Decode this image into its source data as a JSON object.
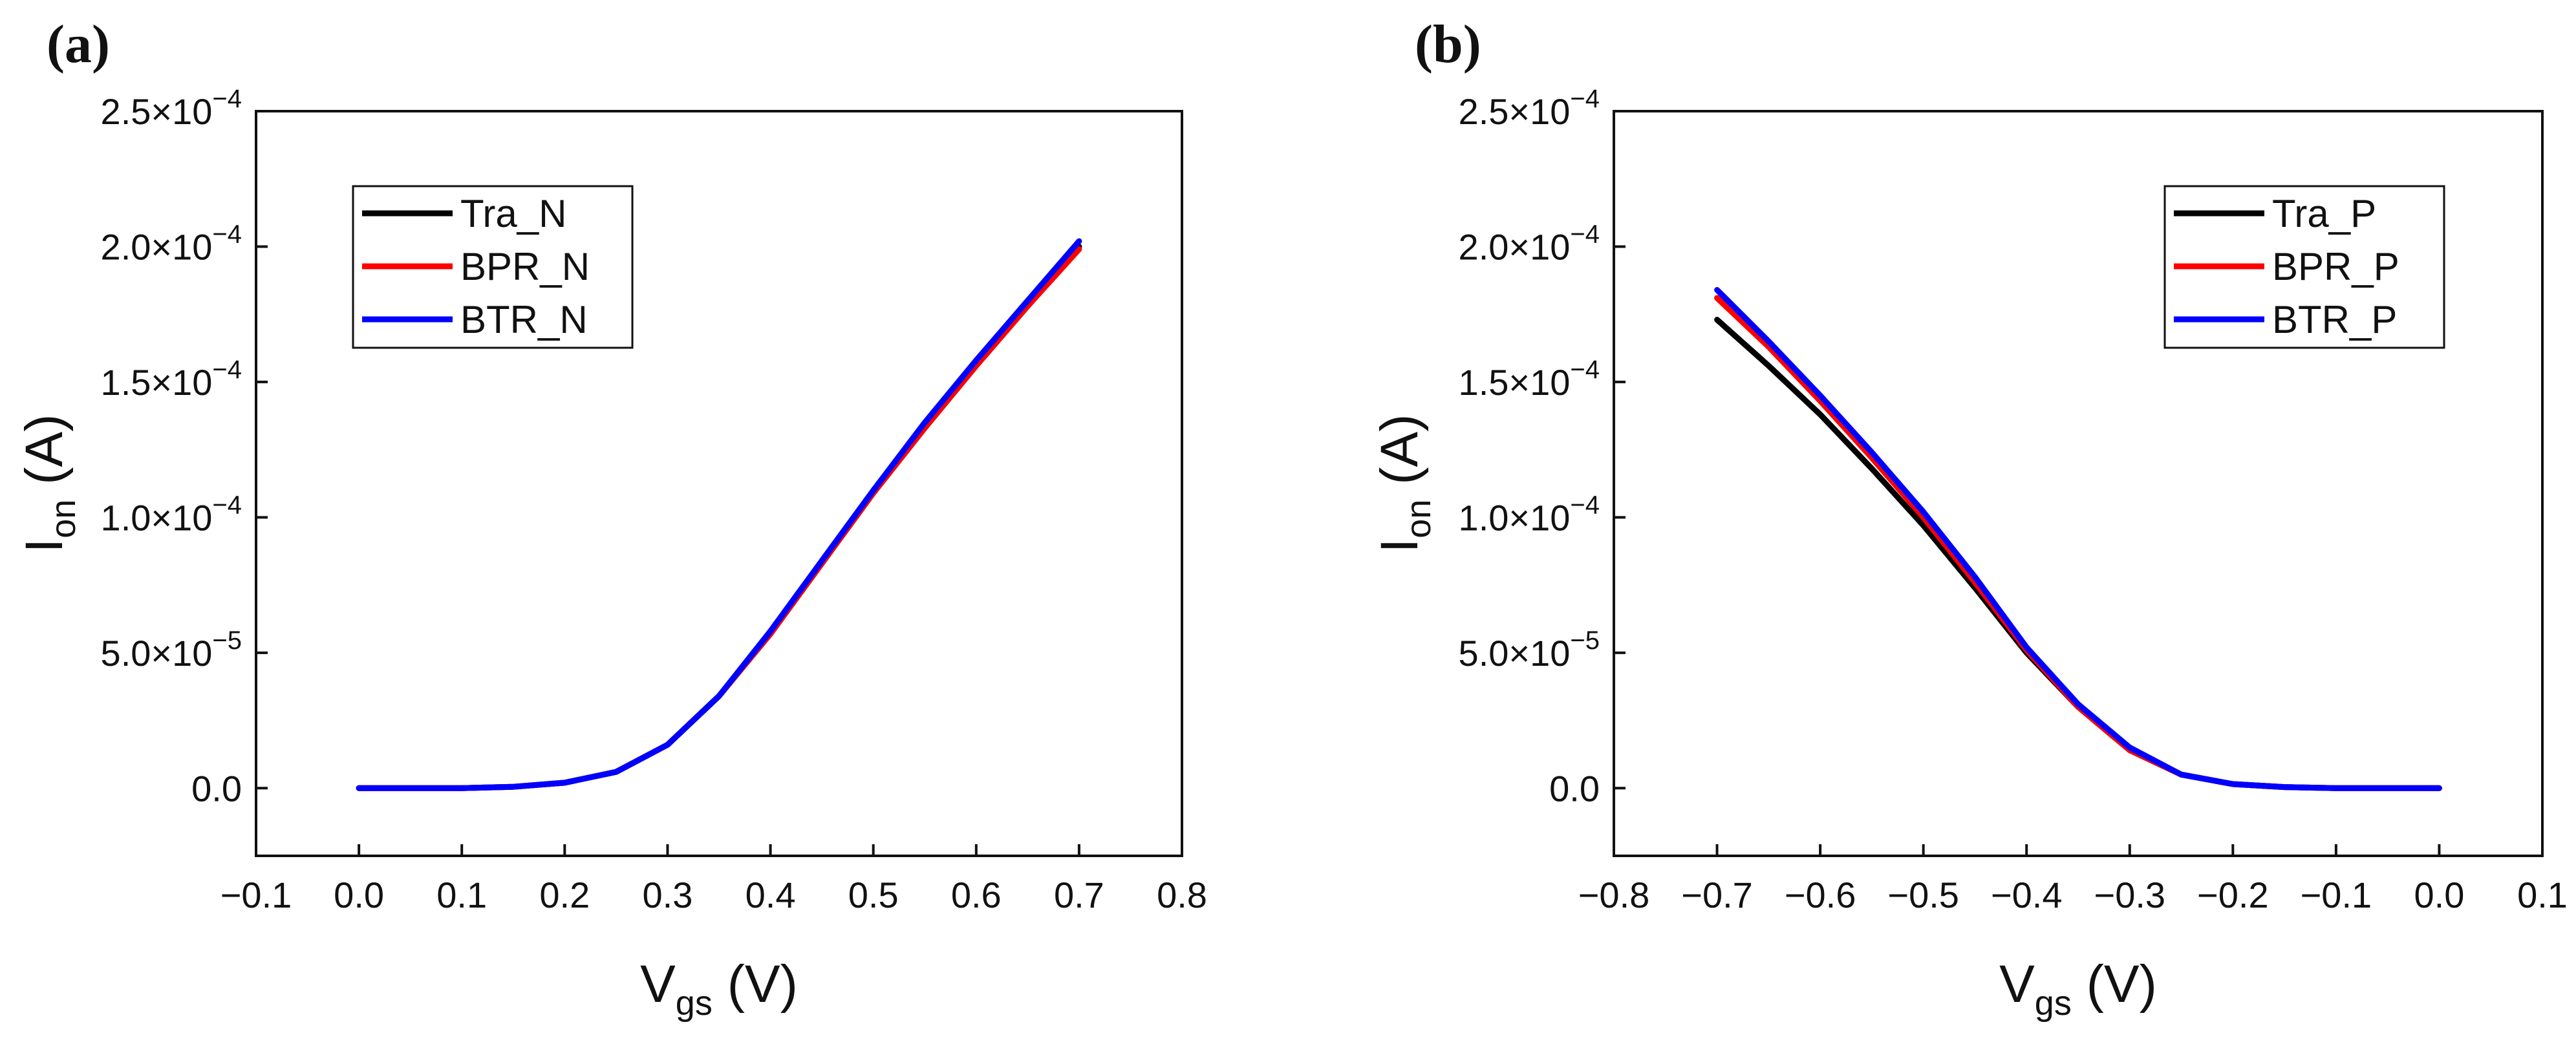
{
  "chart_data": [
    {
      "type": "line",
      "panel_label": "(a)",
      "xlabel": "V",
      "xlabel_sub": "gs",
      "xlabel_unit": " (V)",
      "ylabel": "I",
      "ylabel_sub": "on",
      "ylabel_unit": " (A)",
      "xlim": [
        -0.1,
        0.8
      ],
      "ylim": [
        -2.5e-05,
        0.00025
      ],
      "xticks": [
        -0.1,
        0.0,
        0.1,
        0.2,
        0.3,
        0.4,
        0.5,
        0.6,
        0.7,
        0.8
      ],
      "xtick_labels": [
        "−0.1",
        "0.0",
        "0.1",
        "0.2",
        "0.3",
        "0.4",
        "0.5",
        "0.6",
        "0.7",
        "0.8"
      ],
      "yticks": [
        0,
        5e-05,
        0.0001,
        0.00015,
        0.0002,
        0.00025
      ],
      "ytick_labels": [
        {
          "mant": "0.0",
          "exp": ""
        },
        {
          "mant": "5.0×10",
          "exp": "−5"
        },
        {
          "mant": "1.0×10",
          "exp": "−4"
        },
        {
          "mant": "1.5×10",
          "exp": "−4"
        },
        {
          "mant": "2.0×10",
          "exp": "−4"
        },
        {
          "mant": "2.5×10",
          "exp": "−4"
        }
      ],
      "legend_position": "top-left",
      "series": [
        {
          "name": "Tra_N",
          "color": "#000000",
          "x": [
            0.0,
            0.05,
            0.1,
            0.15,
            0.2,
            0.25,
            0.3,
            0.35,
            0.4,
            0.45,
            0.5,
            0.55,
            0.6,
            0.65,
            0.7
          ],
          "y": [
            0,
            0,
            0,
            5e-07,
            2e-06,
            6e-06,
            1.6e-05,
            3.4e-05,
            5.7e-05,
            8.3e-05,
            0.000109,
            0.000133,
            0.000156,
            0.000178,
            0.0002
          ]
        },
        {
          "name": "BPR_N",
          "color": "#ff0000",
          "x": [
            0.0,
            0.05,
            0.1,
            0.15,
            0.2,
            0.25,
            0.3,
            0.35,
            0.4,
            0.45,
            0.5,
            0.55,
            0.6,
            0.65,
            0.7
          ],
          "y": [
            0,
            0,
            0,
            5e-07,
            2e-06,
            6e-06,
            1.6e-05,
            3.4e-05,
            5.7e-05,
            8.3e-05,
            0.000109,
            0.000133,
            0.000156,
            0.000178,
            0.000199
          ]
        },
        {
          "name": "BTR_N",
          "color": "#0000ff",
          "x": [
            0.0,
            0.05,
            0.1,
            0.15,
            0.2,
            0.25,
            0.3,
            0.35,
            0.4,
            0.45,
            0.5,
            0.55,
            0.6,
            0.65,
            0.7
          ],
          "y": [
            0,
            0,
            0,
            5e-07,
            2e-06,
            6e-06,
            1.6e-05,
            3.4e-05,
            5.8e-05,
            8.4e-05,
            0.00011,
            0.000135,
            0.000158,
            0.00018,
            0.000202
          ]
        }
      ]
    },
    {
      "type": "line",
      "panel_label": "(b)",
      "xlabel": "V",
      "xlabel_sub": "gs",
      "xlabel_unit": " (V)",
      "ylabel": "I",
      "ylabel_sub": "on",
      "ylabel_unit": " (A)",
      "xlim": [
        -0.8,
        0.1
      ],
      "ylim": [
        -2.5e-05,
        0.00025
      ],
      "xticks": [
        -0.8,
        -0.7,
        -0.6,
        -0.5,
        -0.4,
        -0.3,
        -0.2,
        -0.1,
        0.0,
        0.1
      ],
      "xtick_labels": [
        "−0.8",
        "−0.7",
        "−0.6",
        "−0.5",
        "−0.4",
        "−0.3",
        "−0.2",
        "−0.1",
        "0.0",
        "0.1"
      ],
      "yticks": [
        0,
        5e-05,
        0.0001,
        0.00015,
        0.0002,
        0.00025
      ],
      "ytick_labels": [
        {
          "mant": "0.0",
          "exp": ""
        },
        {
          "mant": "5.0×10",
          "exp": "−5"
        },
        {
          "mant": "1.0×10",
          "exp": "−4"
        },
        {
          "mant": "1.5×10",
          "exp": "−4"
        },
        {
          "mant": "2.0×10",
          "exp": "−4"
        },
        {
          "mant": "2.5×10",
          "exp": "−4"
        }
      ],
      "legend_position": "top-right",
      "series": [
        {
          "name": "Tra_P",
          "color": "#000000",
          "x": [
            -0.7,
            -0.65,
            -0.6,
            -0.55,
            -0.5,
            -0.45,
            -0.4,
            -0.35,
            -0.3,
            -0.25,
            -0.2,
            -0.15,
            -0.1,
            -0.05,
            0.0
          ],
          "y": [
            0.000173,
            0.000156,
            0.000138,
            0.000118,
            9.7e-05,
            7.4e-05,
            5e-05,
            3e-05,
            1.4e-05,
            5e-06,
            1.5e-06,
            4e-07,
            0,
            0,
            0
          ]
        },
        {
          "name": "BPR_P",
          "color": "#ff0000",
          "x": [
            -0.7,
            -0.65,
            -0.6,
            -0.55,
            -0.5,
            -0.45,
            -0.4,
            -0.35,
            -0.3,
            -0.25,
            -0.2,
            -0.15,
            -0.1,
            -0.05,
            0.0
          ],
          "y": [
            0.000181,
            0.000163,
            0.000143,
            0.000122,
            0.0001,
            7.6e-05,
            5.1e-05,
            3e-05,
            1.4e-05,
            5e-06,
            1.5e-06,
            4e-07,
            0,
            0,
            0
          ]
        },
        {
          "name": "BTR_P",
          "color": "#0000ff",
          "x": [
            -0.7,
            -0.65,
            -0.6,
            -0.55,
            -0.5,
            -0.45,
            -0.4,
            -0.35,
            -0.3,
            -0.25,
            -0.2,
            -0.15,
            -0.1,
            -0.05,
            0.0
          ],
          "y": [
            0.000184,
            0.000165,
            0.000145,
            0.000124,
            0.000102,
            7.8e-05,
            5.2e-05,
            3.1e-05,
            1.5e-05,
            5e-06,
            1.5e-06,
            4e-07,
            0,
            0,
            0
          ]
        }
      ]
    }
  ]
}
